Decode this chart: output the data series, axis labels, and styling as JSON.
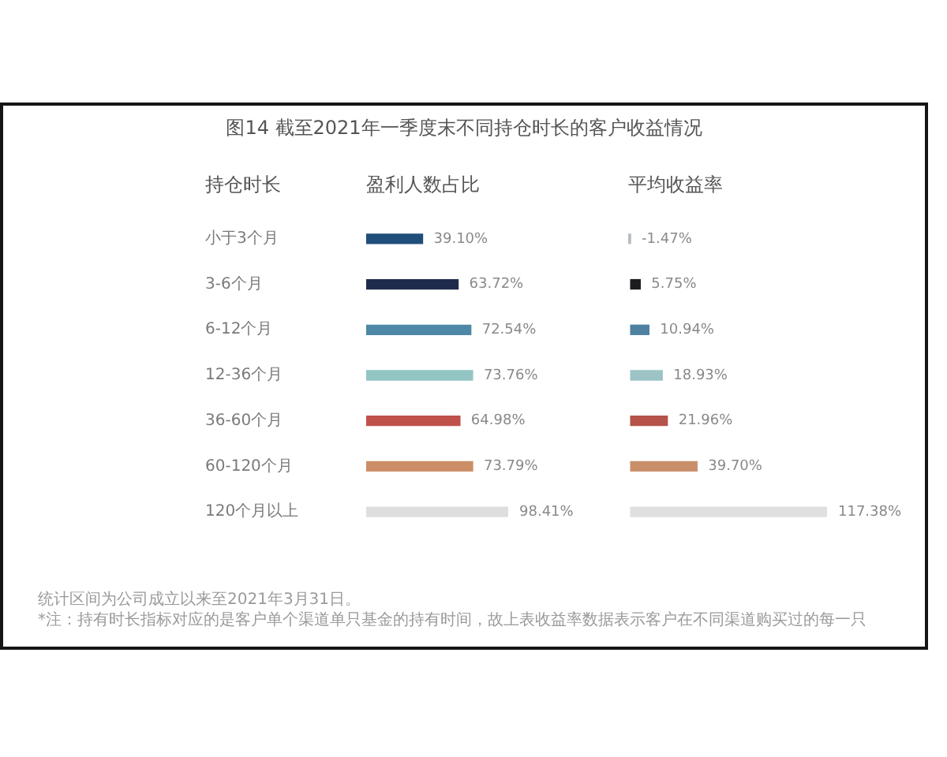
{
  "chart_data": [
    {
      "type": "bar",
      "orientation": "horizontal",
      "title": "图14 截至2021年一季度末不同持仓时长的客户收益情况",
      "subtitle": "盈利人数占比",
      "ylabel": "持仓时长",
      "categories": [
        "小于3个月",
        "3-6个月",
        "6-12个月",
        "12-36个月",
        "36-60个月",
        "60-120个月",
        "120个月以上"
      ],
      "values": [
        39.1,
        63.72,
        72.54,
        73.76,
        64.98,
        73.79,
        98.41
      ],
      "colors": [
        "#1f4e7a",
        "#1f2b4d",
        "#4e88a7",
        "#93c5c4",
        "#c0504a",
        "#cc8e66",
        "#dedede"
      ],
      "value_labels": [
        "39.10%",
        "63.72%",
        "72.54%",
        "73.76%",
        "64.98%",
        "73.79%",
        "98.41%"
      ],
      "tick_labels": "y",
      "annotations": [
        "统计区间为公司成立以来至2021年3月31日。",
        "*注：持有时长指标对应的是客户单个渠道单只基金的持有时间，故上表收益率数据表示客户在不同渠道购买过的每一只"
      ]
    },
    {
      "type": "bar",
      "orientation": "horizontal",
      "subtitle": "平均收益率",
      "categories": [
        null,
        null,
        null,
        null,
        null,
        null,
        null
      ],
      "values": [
        -1.47,
        5.75,
        10.94,
        18.93,
        21.96,
        39.7,
        117.38
      ],
      "colors": [
        "#b4bcc4",
        "#1c1c1e",
        "#4e80a2",
        "#9cc4c6",
        "#b5524a",
        "#c98f6a",
        "#e0e0e0"
      ],
      "value_labels": [
        "-1.47%",
        "5.75%",
        "10.94%",
        "18.93%",
        "21.96%",
        "39.70%",
        "117.38%"
      ],
      "tick_labels": false
    }
  ]
}
